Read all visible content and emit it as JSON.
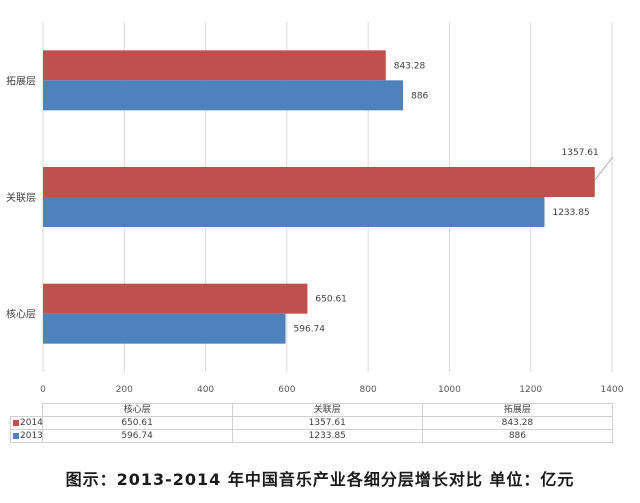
{
  "chart_data": {
    "type": "bar",
    "orientation": "horizontal",
    "categories": [
      "核心层",
      "关联层",
      "拓展层"
    ],
    "series": [
      {
        "name": "2014",
        "color": "#c0504d",
        "values": [
          650.61,
          1357.61,
          843.28
        ]
      },
      {
        "name": "2013",
        "color": "#4f81bd",
        "values": [
          596.74,
          1233.85,
          886
        ]
      }
    ],
    "data_labels": {
      "2014": [
        "650.61",
        "1357.61",
        "843.28"
      ],
      "2013": [
        "596.74",
        "1233.85",
        "886"
      ]
    },
    "xticks": [
      "0",
      "200",
      "400",
      "600",
      "800",
      "1000",
      "1200",
      "1400"
    ],
    "xlim": [
      0,
      1400
    ],
    "grid": true,
    "legend": "data-table-below"
  },
  "table": {
    "headers": [
      "核心层",
      "关联层",
      "拓展层"
    ],
    "rows": [
      {
        "series": "2014",
        "color": "#c0504d",
        "cells": [
          "650.61",
          "1357.61",
          "843.28"
        ]
      },
      {
        "series": "2013",
        "color": "#4f81bd",
        "cells": [
          "596.74",
          "1233.85",
          "886"
        ]
      }
    ]
  },
  "caption": "图示：2013-2014 年中国音乐产业各细分层增长对比 单位：亿元"
}
